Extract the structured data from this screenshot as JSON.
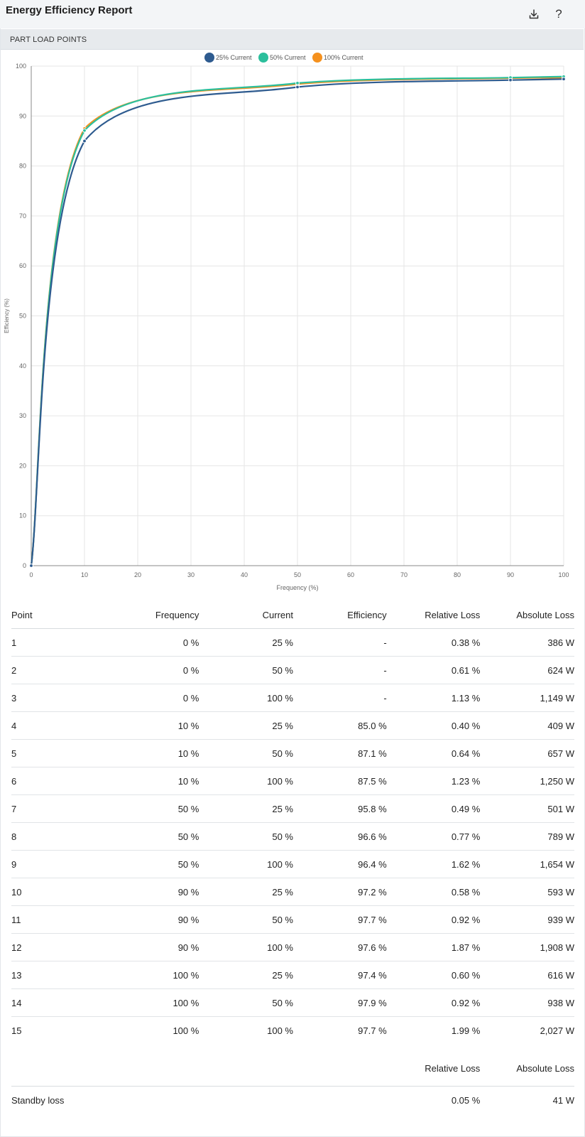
{
  "app": {
    "title": "Energy Efficiency Report"
  },
  "toolbar": {
    "download_icon": "download-icon",
    "help_label": "?"
  },
  "section": {
    "title": "PART LOAD POINTS"
  },
  "chart_data": {
    "type": "line",
    "xlabel": "Frequency (%)",
    "ylabel": "Efficiency (%)",
    "xlim": [
      0,
      100
    ],
    "ylim": [
      0,
      100
    ],
    "xticks": [
      0,
      10,
      20,
      30,
      40,
      50,
      60,
      70,
      80,
      90,
      100
    ],
    "yticks": [
      0,
      10,
      20,
      30,
      40,
      50,
      60,
      70,
      80,
      90,
      100
    ],
    "grid": true,
    "legend_position": "top-center",
    "x": [
      0,
      10,
      50,
      90,
      100
    ],
    "series": [
      {
        "name": "25% Current",
        "color": "#2e5b8f",
        "values": [
          0,
          85.0,
          95.8,
          97.2,
          97.4
        ]
      },
      {
        "name": "50% Current",
        "color": "#2cbf9c",
        "values": [
          0,
          87.1,
          96.6,
          97.7,
          97.9
        ]
      },
      {
        "name": "100% Current",
        "color": "#f5911e",
        "values": [
          0,
          87.5,
          96.4,
          97.6,
          97.7
        ]
      }
    ]
  },
  "table": {
    "headers": [
      "Point",
      "Frequency",
      "Current",
      "Efficiency",
      "Relative Loss",
      "Absolute Loss"
    ],
    "rows": [
      [
        "1",
        "0 %",
        "25 %",
        "-",
        "0.38 %",
        "386 W"
      ],
      [
        "2",
        "0 %",
        "50 %",
        "-",
        "0.61 %",
        "624 W"
      ],
      [
        "3",
        "0 %",
        "100 %",
        "-",
        "1.13 %",
        "1,149 W"
      ],
      [
        "4",
        "10 %",
        "25 %",
        "85.0 %",
        "0.40 %",
        "409 W"
      ],
      [
        "5",
        "10 %",
        "50 %",
        "87.1 %",
        "0.64 %",
        "657 W"
      ],
      [
        "6",
        "10 %",
        "100 %",
        "87.5 %",
        "1.23 %",
        "1,250 W"
      ],
      [
        "7",
        "50 %",
        "25 %",
        "95.8 %",
        "0.49 %",
        "501 W"
      ],
      [
        "8",
        "50 %",
        "50 %",
        "96.6 %",
        "0.77 %",
        "789 W"
      ],
      [
        "9",
        "50 %",
        "100 %",
        "96.4 %",
        "1.62 %",
        "1,654 W"
      ],
      [
        "10",
        "90 %",
        "25 %",
        "97.2 %",
        "0.58 %",
        "593 W"
      ],
      [
        "11",
        "90 %",
        "50 %",
        "97.7 %",
        "0.92 %",
        "939 W"
      ],
      [
        "12",
        "90 %",
        "100 %",
        "97.6 %",
        "1.87 %",
        "1,908 W"
      ],
      [
        "13",
        "100 %",
        "25 %",
        "97.4 %",
        "0.60 %",
        "616 W"
      ],
      [
        "14",
        "100 %",
        "50 %",
        "97.9 %",
        "0.92 %",
        "938 W"
      ],
      [
        "15",
        "100 %",
        "100 %",
        "97.7 %",
        "1.99 %",
        "2,027 W"
      ]
    ]
  },
  "standby": {
    "headers": [
      "Relative Loss",
      "Absolute Loss"
    ],
    "label": "Standby loss",
    "relative": "0.05 %",
    "absolute": "41 W"
  }
}
